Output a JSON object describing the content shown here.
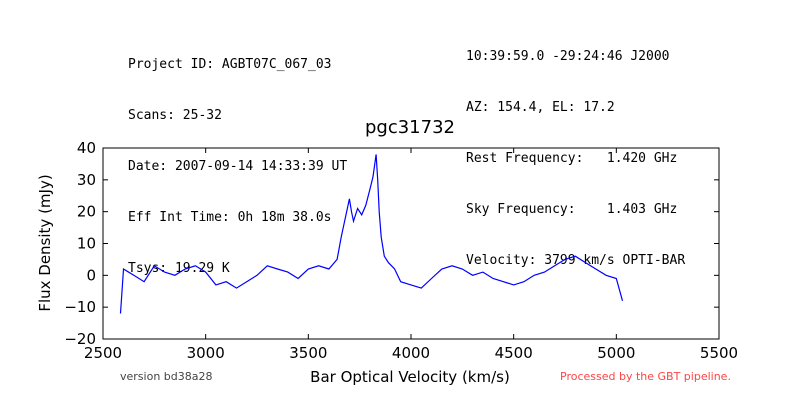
{
  "header": {
    "left_lines": [
      "Project ID: AGBT07C_067_03",
      "Scans: 25-32",
      "Date: 2007-09-14 14:33:39 UT",
      "Eff Int Time: 0h 18m 38.0s",
      "Tsys: 19.29 K"
    ],
    "right_lines": [
      "10:39:59.0 -29:24:46 J2000",
      "AZ: 154.4, EL: 17.2",
      "Rest Frequency:   1.420 GHz",
      "Sky Frequency:    1.403 GHz",
      "Velocity: 3799 km/s OPTI-BAR"
    ]
  },
  "footer": {
    "version": "version bd38a28",
    "pipeline": "Processed by the GBT pipeline."
  },
  "colors": {
    "line": "#0000ff",
    "axes": "#000000",
    "pipeline_text": "#ff4444"
  },
  "chart_data": {
    "type": "line",
    "title": "pgc31732",
    "xlabel": "Bar Optical Velocity (km/s)",
    "ylabel": "Flux Density (mJy)",
    "xlim": [
      2500,
      5500
    ],
    "ylim": [
      -20,
      40
    ],
    "xticks": [
      "2500",
      "3000",
      "3500",
      "4000",
      "4500",
      "5000",
      "5500"
    ],
    "yticks": [
      "−20",
      "−10",
      "0",
      "10",
      "20",
      "30",
      "40"
    ],
    "grid": false,
    "legend": "none",
    "series": [
      {
        "x": [
          2585,
          2600,
          2650,
          2700,
          2750,
          2800,
          2850,
          2900,
          2950,
          3000,
          3050,
          3100,
          3150,
          3200,
          3250,
          3300,
          3350,
          3400,
          3450,
          3500,
          3550,
          3600,
          3640,
          3660,
          3680,
          3700,
          3710,
          3720,
          3740,
          3760,
          3780,
          3800,
          3815,
          3830,
          3838,
          3845,
          3855,
          3870,
          3890,
          3920,
          3950,
          4000,
          4050,
          4100,
          4150,
          4200,
          4250,
          4300,
          4350,
          4400,
          4450,
          4500,
          4550,
          4600,
          4650,
          4700,
          4750,
          4800,
          4850,
          4900,
          4950,
          5000,
          5030
        ],
        "y": [
          -12,
          2,
          0,
          -2,
          3,
          1,
          0,
          2,
          3,
          1,
          -3,
          -2,
          -4,
          -2,
          0,
          3,
          2,
          1,
          -1,
          2,
          3,
          2,
          5,
          12,
          18,
          24,
          20,
          17,
          21,
          19,
          22,
          27,
          31,
          38,
          30,
          20,
          12,
          6,
          4,
          2,
          -2,
          -3,
          -4,
          -1,
          2,
          3,
          2,
          0,
          1,
          -1,
          -2,
          -3,
          -2,
          0,
          1,
          3,
          5,
          6,
          4,
          2,
          0,
          -1,
          -8
        ]
      }
    ]
  }
}
